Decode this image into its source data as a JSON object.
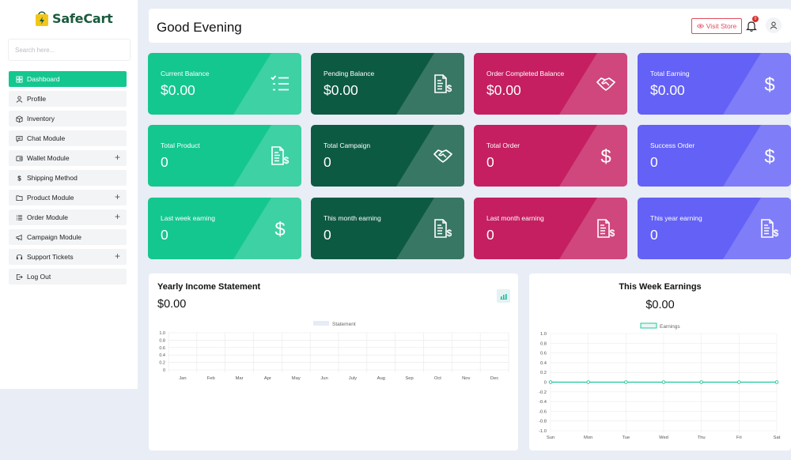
{
  "brand": {
    "name": "SafeCart"
  },
  "search": {
    "placeholder": "Search here..."
  },
  "sidebar": {
    "items": [
      {
        "label": "Dashboard",
        "icon": "grid-icon",
        "active": true,
        "expandable": false
      },
      {
        "label": "Profile",
        "icon": "user-icon",
        "active": false,
        "expandable": false
      },
      {
        "label": "Inventory",
        "icon": "box-icon",
        "active": false,
        "expandable": false
      },
      {
        "label": "Chat Module",
        "icon": "chat-icon",
        "active": false,
        "expandable": false
      },
      {
        "label": "Wallet Module",
        "icon": "wallet-icon",
        "active": false,
        "expandable": true
      },
      {
        "label": "Shipping Method",
        "icon": "dollar-icon",
        "active": false,
        "expandable": false
      },
      {
        "label": "Product Module",
        "icon": "folder-icon",
        "active": false,
        "expandable": true
      },
      {
        "label": "Order Module",
        "icon": "list-icon",
        "active": false,
        "expandable": true
      },
      {
        "label": "Campaign Module",
        "icon": "megaphone-icon",
        "active": false,
        "expandable": false
      },
      {
        "label": "Support Tickets",
        "icon": "headset-icon",
        "active": false,
        "expandable": true
      },
      {
        "label": "Log Out",
        "icon": "logout-icon",
        "active": false,
        "expandable": false
      }
    ],
    "expand_glyph": "+"
  },
  "header": {
    "greeting": "Good Evening",
    "visit_store_label": "Visit Store",
    "notification_count": "0"
  },
  "cards": [
    {
      "label": "Current Balance",
      "value": "$0.00",
      "color": "#14c78f",
      "icon": "checklist-icon"
    },
    {
      "label": "Pending Balance",
      "value": "$0.00",
      "color": "#0d5a43",
      "icon": "invoice-dollar-icon"
    },
    {
      "label": "Order Completed Balance",
      "value": "$0.00",
      "color": "#c51f61",
      "icon": "handshake-icon"
    },
    {
      "label": "Total Earning",
      "value": "$0.00",
      "color": "#6361f6",
      "icon": "dollar-icon"
    },
    {
      "label": "Total Product",
      "value": "0",
      "color": "#14c78f",
      "icon": "invoice-dollar-icon"
    },
    {
      "label": "Total Campaign",
      "value": "0",
      "color": "#0d5a43",
      "icon": "handshake-icon"
    },
    {
      "label": "Total Order",
      "value": "0",
      "color": "#c51f61",
      "icon": "dollar-icon"
    },
    {
      "label": "Success Order",
      "value": "0",
      "color": "#6361f6",
      "icon": "dollar-icon"
    },
    {
      "label": "Last week earning",
      "value": "0",
      "color": "#14c78f",
      "icon": "dollar-icon"
    },
    {
      "label": "This month earning",
      "value": "0",
      "color": "#0d5a43",
      "icon": "invoice-dollar-icon"
    },
    {
      "label": "Last month earning",
      "value": "0",
      "color": "#c51f61",
      "icon": "invoice-dollar-icon"
    },
    {
      "label": "This year earning",
      "value": "0",
      "color": "#6361f6",
      "icon": "invoice-dollar-icon"
    }
  ],
  "yearly": {
    "title": "Yearly Income Statement",
    "value": "$0.00"
  },
  "weekly": {
    "title": "This Week Earnings",
    "value": "$0.00"
  },
  "chart_data": [
    {
      "type": "bar",
      "title": "Yearly Income Statement",
      "categories": [
        "Jan",
        "Feb",
        "Mar",
        "Apr",
        "May",
        "Jun",
        "July",
        "Aug",
        "Sep",
        "Oct",
        "Nov",
        "Dec"
      ],
      "series": [
        {
          "name": "Statement",
          "values": [
            0,
            0,
            0,
            0,
            0,
            0,
            0,
            0,
            0,
            0,
            0,
            0
          ],
          "color": "#e6ebf7"
        }
      ],
      "ylim": [
        0,
        1
      ],
      "yticks": [
        "1.0",
        "0.8",
        "0.6",
        "0.4",
        "0.2",
        "0"
      ],
      "grid": true,
      "legend": "top-center"
    },
    {
      "type": "line",
      "title": "This Week Earnings",
      "categories": [
        "Sun",
        "Mon",
        "Tue",
        "Wed",
        "Thu",
        "Fri",
        "Sat"
      ],
      "series": [
        {
          "name": "Earnings",
          "values": [
            0,
            0,
            0,
            0,
            0,
            0,
            0
          ],
          "color": "#1fc79a"
        }
      ],
      "ylim": [
        -1,
        1
      ],
      "yticks": [
        "1.0",
        "0.8",
        "0.6",
        "0.4",
        "0.2",
        "0",
        "-0.2",
        "-0.4",
        "-0.6",
        "-0.8",
        "-1.0"
      ],
      "grid": true,
      "legend": "top-center"
    }
  ]
}
